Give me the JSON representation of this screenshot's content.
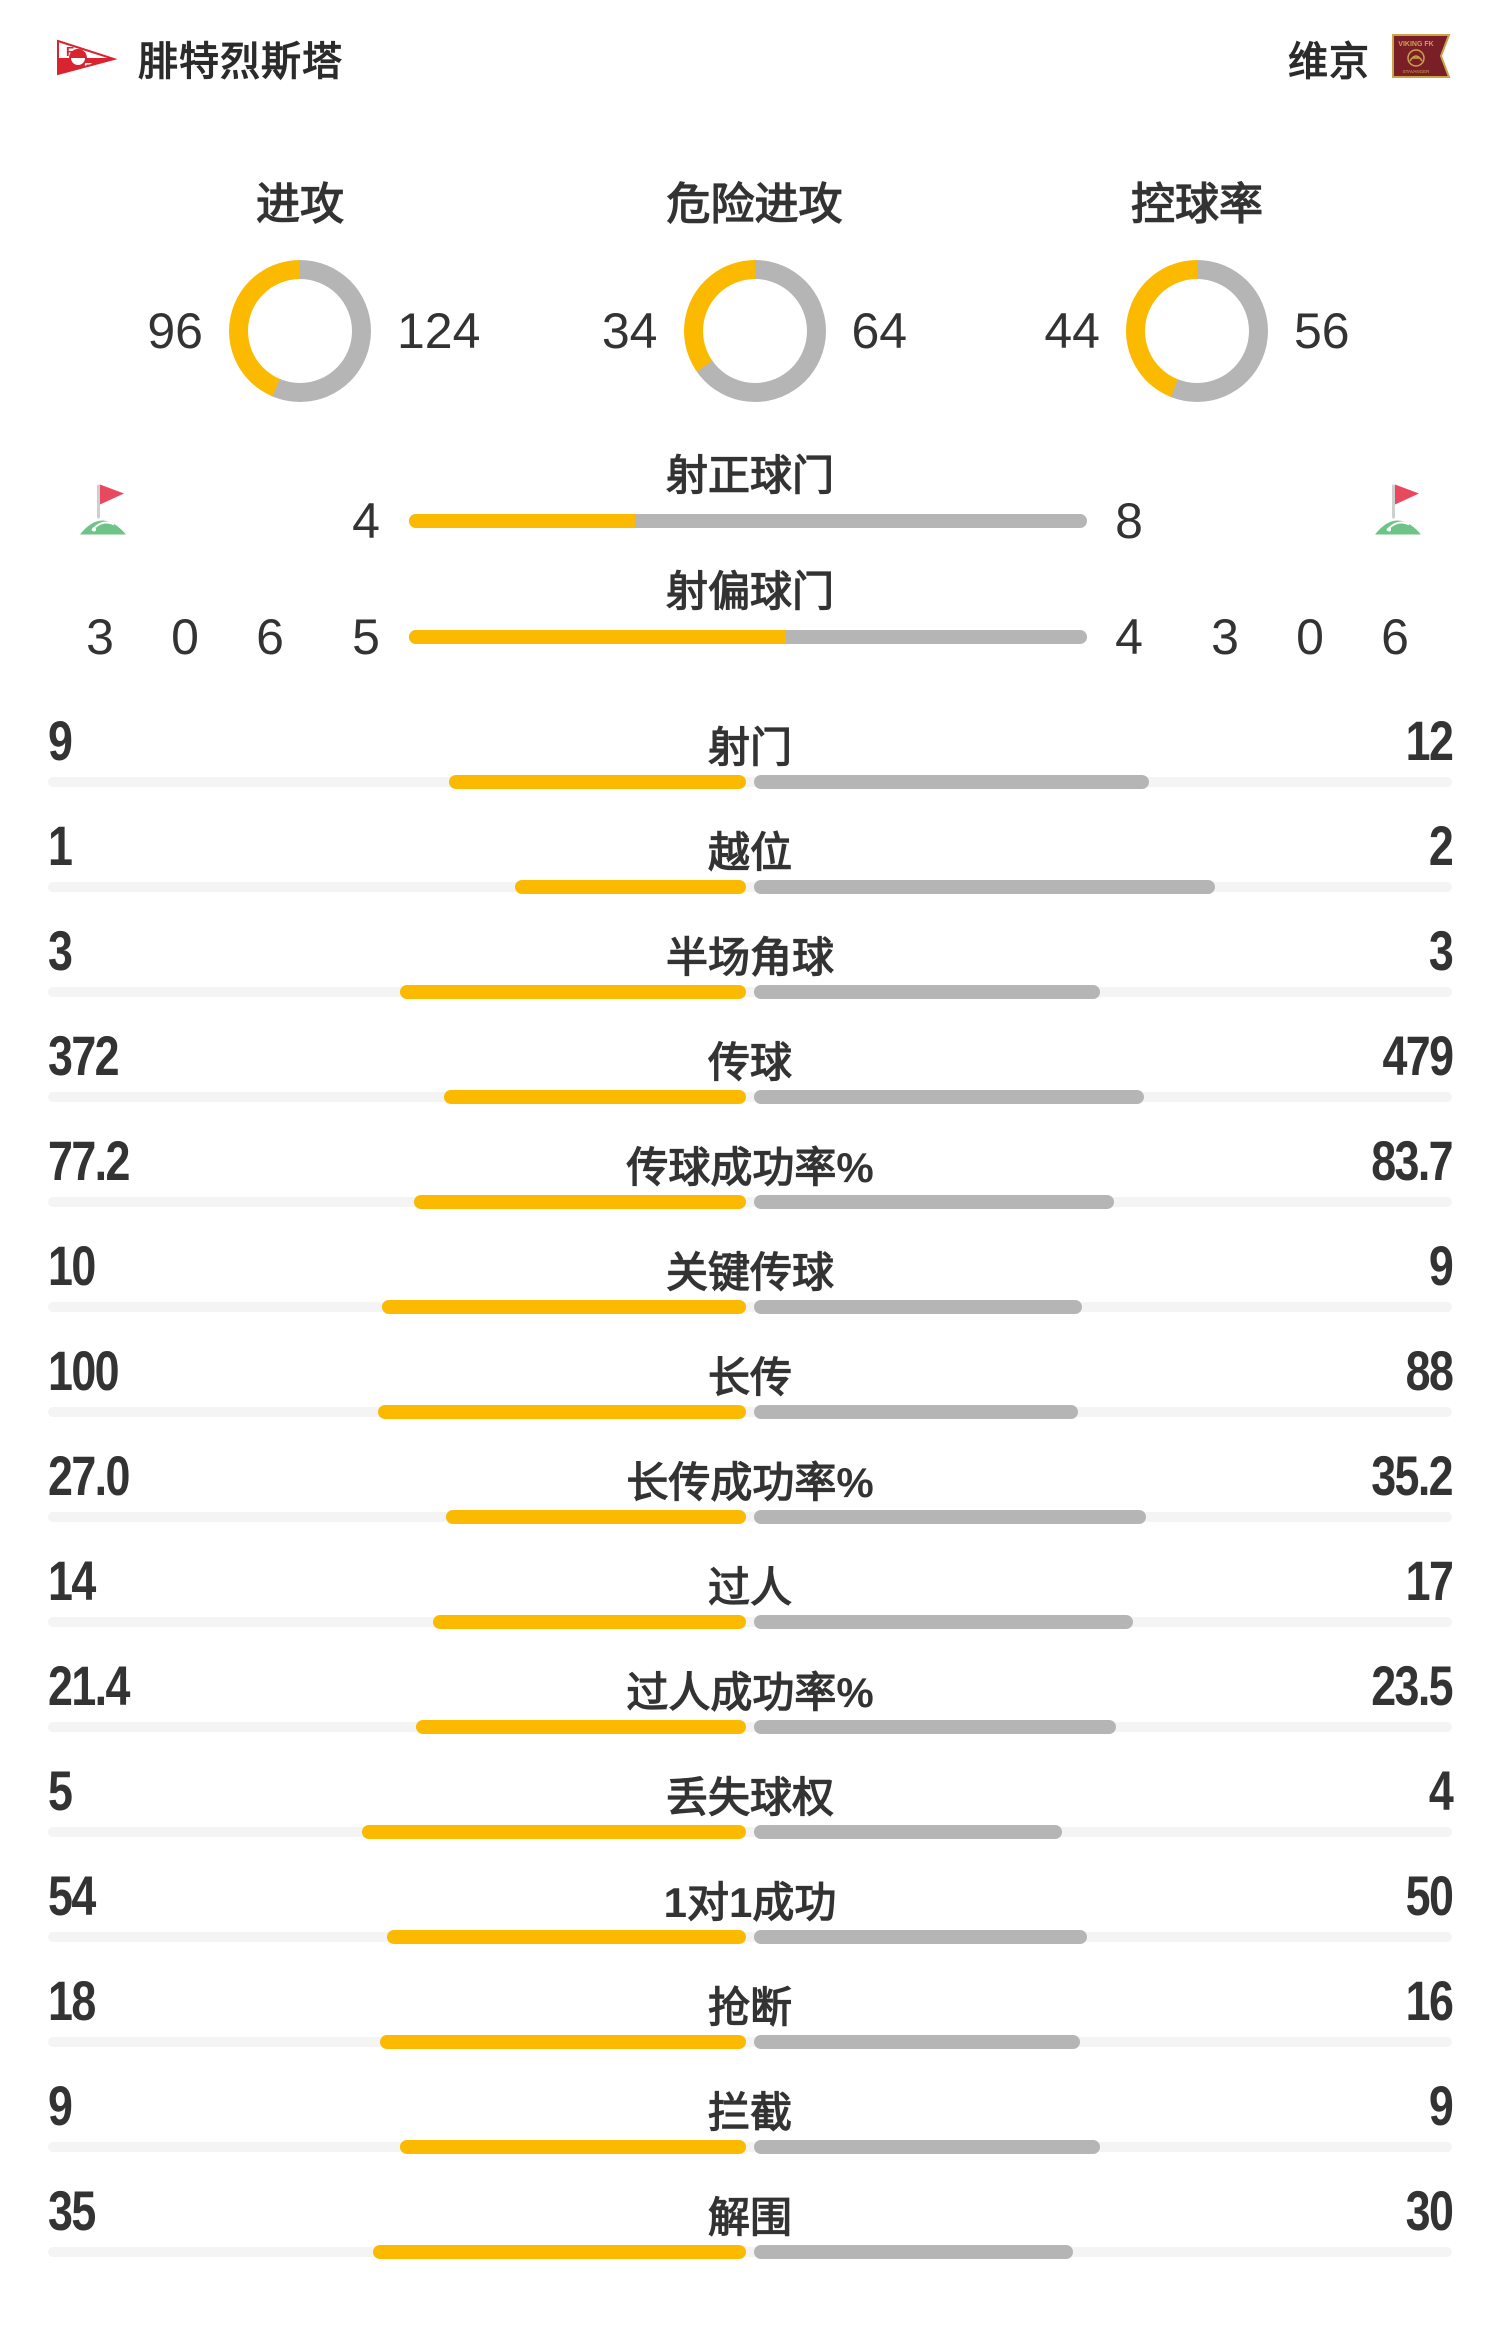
{
  "header": {
    "home": {
      "name": "腓特烈斯塔"
    },
    "away": {
      "name": "维京",
      "logo_text": "VIKING FK",
      "logo_subtext": "STAVANGER"
    }
  },
  "colors": {
    "home_accent": "#FBBA00",
    "away_accent": "#B5B5B5",
    "track": "#F4F4F4",
    "text": "#333333",
    "red_card": "#E4495B",
    "yellow_card": "#F6B400",
    "corner_flag_red": "#E8495F",
    "corner_grass_green": "#6EC486",
    "home_logo_red": "#D9232E",
    "away_logo_maroon": "#7B1F27",
    "away_logo_gold": "#C9A44C"
  },
  "chart_data": {
    "type": "match-stats-dashboard",
    "teams": [
      "腓特烈斯塔",
      "维京"
    ],
    "donuts": [
      {
        "type": "donut",
        "title": "进攻",
        "home": 96,
        "away": 124
      },
      {
        "type": "donut",
        "title": "危险进攻",
        "home": 34,
        "away": 64
      },
      {
        "type": "donut",
        "title": "控球率",
        "home": 44,
        "away": 56
      }
    ],
    "discipline": {
      "home": {
        "icons": [
          "corner-flag",
          "red-card",
          "yellow-card"
        ],
        "values": [
          3,
          0,
          6
        ]
      },
      "away": {
        "icons": [
          "yellow-card",
          "red-card",
          "corner-flag"
        ],
        "values": [
          3,
          0,
          6
        ]
      }
    },
    "shot_bars": [
      {
        "type": "bar",
        "label": "射正球门",
        "home": 4,
        "away": 8
      },
      {
        "type": "bar",
        "label": "射偏球门",
        "home": 5,
        "away": 4
      }
    ],
    "stat_rows": [
      {
        "type": "bar",
        "label": "射门",
        "home": "9",
        "away": "12"
      },
      {
        "type": "bar",
        "label": "越位",
        "home": "1",
        "away": "2"
      },
      {
        "type": "bar",
        "label": "半场角球",
        "home": "3",
        "away": "3"
      },
      {
        "type": "bar",
        "label": "传球",
        "home": "372",
        "away": "479"
      },
      {
        "type": "bar",
        "label": "传球成功率%",
        "home": "77.2",
        "away": "83.7"
      },
      {
        "type": "bar",
        "label": "关键传球",
        "home": "10",
        "away": "9"
      },
      {
        "type": "bar",
        "label": "长传",
        "home": "100",
        "away": "88"
      },
      {
        "type": "bar",
        "label": "长传成功率%",
        "home": "27.0",
        "away": "35.2"
      },
      {
        "type": "bar",
        "label": "过人",
        "home": "14",
        "away": "17"
      },
      {
        "type": "bar",
        "label": "过人成功率%",
        "home": "21.4",
        "away": "23.5"
      },
      {
        "type": "bar",
        "label": "丢失球权",
        "home": "5",
        "away": "4"
      },
      {
        "type": "bar",
        "label": "1对1成功",
        "home": "54",
        "away": "50"
      },
      {
        "type": "bar",
        "label": "抢断",
        "home": "18",
        "away": "16"
      },
      {
        "type": "bar",
        "label": "拦截",
        "home": "9",
        "away": "9"
      },
      {
        "type": "bar",
        "label": "解围",
        "home": "35",
        "away": "30"
      }
    ]
  }
}
